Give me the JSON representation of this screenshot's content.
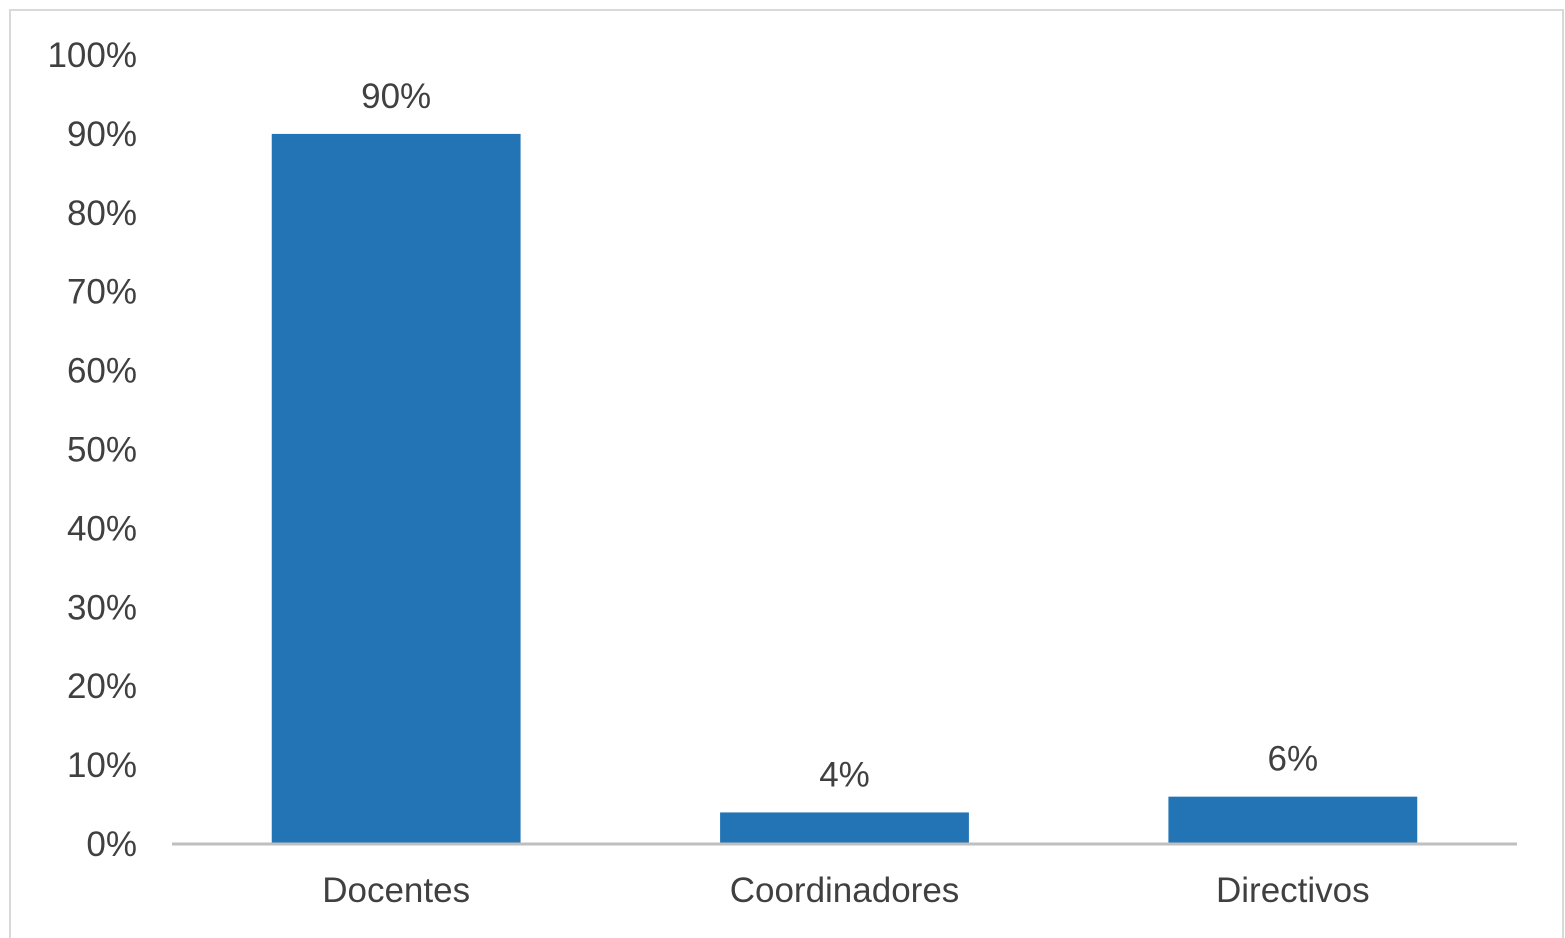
{
  "chart_data": {
    "type": "bar",
    "title": "",
    "xlabel": "",
    "ylabel": "",
    "categories": [
      "Docentes",
      "Coordinadores",
      "Directivos"
    ],
    "values": [
      90,
      4,
      6
    ],
    "data_labels": [
      "90%",
      "4%",
      "6%"
    ],
    "ylim": [
      0,
      100
    ],
    "yticks": [
      0,
      10,
      20,
      30,
      40,
      50,
      60,
      70,
      80,
      90,
      100
    ],
    "ytick_labels": [
      "0%",
      "10%",
      "20%",
      "30%",
      "40%",
      "50%",
      "60%",
      "70%",
      "80%",
      "90%",
      "100%"
    ],
    "grid": false,
    "legend": "none",
    "colors": {
      "bar": "#2274b5",
      "axis": "#bfbfbf",
      "text": "#404040",
      "frame": "#d9d9d9"
    }
  }
}
